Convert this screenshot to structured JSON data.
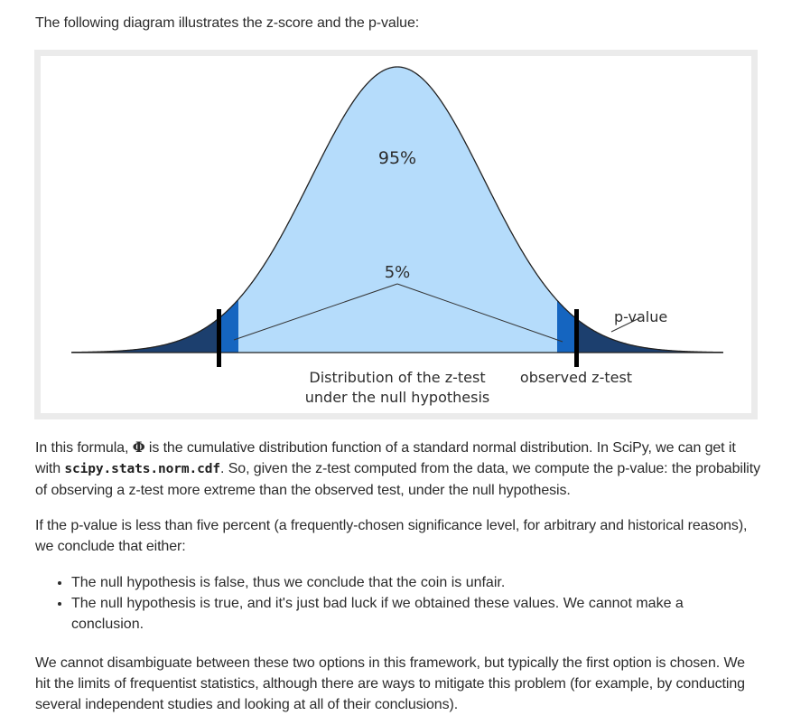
{
  "intro": "The following diagram illustrates the z-score and the p-value:",
  "figure": {
    "label_center": "95%",
    "label_tails": "5%",
    "label_pvalue": "p-value",
    "label_dist_line1": "Distribution of the z-test",
    "label_dist_line2": "under the null hypothesis",
    "label_observed": "observed z-test",
    "colors": {
      "body": "#b5dcfb",
      "critical_region": "#1565c0",
      "tail": "#1c3f6e",
      "curve": "#222222"
    }
  },
  "formula_para": {
    "pre": "In this formula, ",
    "symbol": "Φ",
    "mid": " is the cumulative distribution function of a standard normal distribution. In SciPy, we can get it with ",
    "code": "scipy.stats.norm.cdf",
    "post": ". So, given the z-test computed from the data, we compute the p-value: the probability of observing a z-test more extreme than the observed test, under the null hypothesis."
  },
  "five_percent_para": "If the p-value is less than five percent (a frequently-chosen significance level, for arbitrary and historical reasons), we conclude that either:",
  "bullets": [
    "The null hypothesis is false, thus we conclude that the coin is unfair.",
    "The null hypothesis is true, and it's just bad luck if we obtained these values. We cannot make a conclusion."
  ],
  "final_para": "We cannot disambiguate between these two options in this framework, but typically the first option is chosen. We hit the limits of frequentist statistics, although there are ways to mitigate this problem (for example, by conducting several independent studies and looking at all of their conclusions)."
}
